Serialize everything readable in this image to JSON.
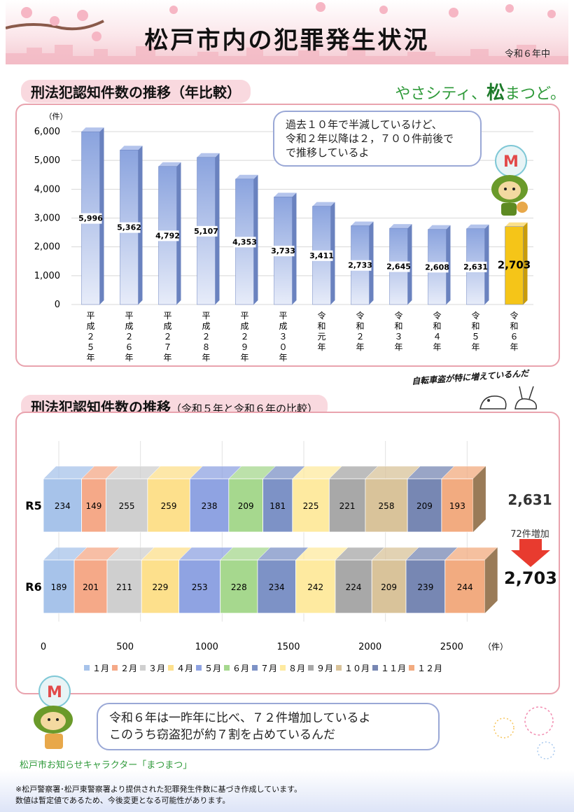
{
  "title": "松戸市内の犯罪発生状況",
  "period": "令和６年中",
  "slogan": {
    "pre": "やさシティ、",
    "mark": "松",
    "post": "まつど。"
  },
  "section1": {
    "title": "刑法犯認知件数の推移（年比較）"
  },
  "section2": {
    "title": "刑法犯認知件数の推移",
    "subtitle": "（令和５年と令和６年の比較）"
  },
  "speech1": [
    "過去１０年で半減しているけど、",
    "令和２年以降は２，７００件前後で",
    "で推移しているよ"
  ],
  "speech_bike": "自転車盗が特に増えているんだ",
  "speech2": [
    "令和６年は一昨年に比べ、７２件増加しているよ",
    "このうち窃盗犯が約７割を占めているんだ"
  ],
  "comparison": {
    "r5_total": "2,631",
    "increase_label": "72件増加",
    "r6_total": "2,703"
  },
  "character_label": "松戸市お知らせキャラクター「まつまつ」",
  "footnotes": [
    "※松戸警察署･松戸東警察署より提供された犯罪発生件数に基づき作成しています。",
    "数値は暫定値であるため、今後変更となる可能性があります。"
  ],
  "colors": {
    "bar": "#8da6df",
    "highlight_bar": "#f5c518",
    "accent_pink": "#e9a3ae"
  },
  "chart_data": [
    {
      "type": "bar",
      "title": "刑法犯認知件数の推移（年比較）",
      "ylabel": "（件）",
      "ylim": [
        0,
        6000
      ],
      "yticks": [
        "0",
        "1,000",
        "2,000",
        "3,000",
        "4,000",
        "5,000",
        "6,000"
      ],
      "categories": [
        "平成２５年",
        "平成２６年",
        "平成２７年",
        "平成２８年",
        "平成２９年",
        "平成３０年",
        "令和元年",
        "令和２年",
        "令和３年",
        "令和４年",
        "令和５年",
        "令和６年"
      ],
      "values": [
        5996,
        5362,
        4792,
        5107,
        4353,
        3733,
        3411,
        2733,
        2645,
        2608,
        2631,
        2703
      ],
      "labels": [
        "5,996",
        "5,362",
        "4,792",
        "5,107",
        "4,353",
        "3,733",
        "3,411",
        "2,733",
        "2,645",
        "2,608",
        "2,631",
        "2,703"
      ],
      "highlight_index": 11,
      "grid": true
    },
    {
      "type": "bar",
      "orientation": "horizontal-stacked",
      "title": "刑法犯認知件数の推移（令和５年と令和６年の比較）",
      "xlabel": "（件）",
      "xlim": [
        0,
        2700
      ],
      "xticks": [
        "0",
        "500",
        "1000",
        "1500",
        "2000",
        "2500"
      ],
      "categories": [
        "R5",
        "R6"
      ],
      "series": [
        {
          "name": "１月",
          "color": "#a7c3ea",
          "values": [
            234,
            189
          ]
        },
        {
          "name": "２月",
          "color": "#f5a988",
          "values": [
            149,
            201
          ]
        },
        {
          "name": "３月",
          "color": "#cfcfcf",
          "values": [
            255,
            211
          ]
        },
        {
          "name": "４月",
          "color": "#fde08c",
          "values": [
            259,
            229
          ]
        },
        {
          "name": "５月",
          "color": "#8fa3e2",
          "values": [
            238,
            253
          ]
        },
        {
          "name": "６月",
          "color": "#a6d88e",
          "values": [
            209,
            228
          ]
        },
        {
          "name": "７月",
          "color": "#7d92c6",
          "values": [
            181,
            234
          ]
        },
        {
          "name": "８月",
          "color": "#feeaa0",
          "values": [
            225,
            242
          ]
        },
        {
          "name": "９月",
          "color": "#a8a8a8",
          "values": [
            221,
            224
          ]
        },
        {
          "name": "１０月",
          "color": "#d9c39a",
          "values": [
            258,
            209
          ]
        },
        {
          "name": "１１月",
          "color": "#7787b3",
          "values": [
            209,
            239
          ]
        },
        {
          "name": "１２月",
          "color": "#f2ab80",
          "values": [
            193,
            244
          ]
        }
      ],
      "legend": "bottom",
      "grid": true
    }
  ]
}
